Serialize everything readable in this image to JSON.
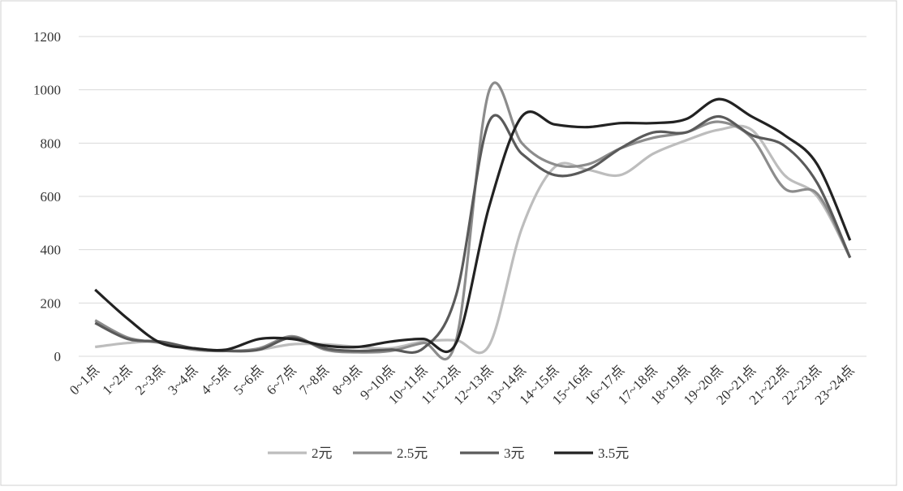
{
  "chart_data": {
    "type": "line",
    "categories": [
      "0~1点",
      "1~2点",
      "2~3点",
      "3~4点",
      "4~5点",
      "5~6点",
      "6~7点",
      "7~8点",
      "8~9点",
      "9~10点",
      "10~11点",
      "11~12点",
      "12~13点",
      "13~14点",
      "14~15点",
      "15~16点",
      "16~17点",
      "17~18点",
      "18~19点",
      "19~20点",
      "20~21点",
      "21~22点",
      "22~23点",
      "23~24点"
    ],
    "series": [
      {
        "name": "2元",
        "color": "#bdbdbd",
        "values": [
          35,
          50,
          55,
          30,
          20,
          25,
          45,
          45,
          35,
          30,
          55,
          60,
          40,
          480,
          710,
          700,
          680,
          760,
          810,
          850,
          850,
          680,
          600,
          370
        ]
      },
      {
        "name": "2.5元",
        "color": "#8c8c8c",
        "values": [
          135,
          70,
          50,
          25,
          20,
          30,
          75,
          25,
          15,
          20,
          50,
          60,
          995,
          800,
          720,
          720,
          780,
          820,
          840,
          880,
          820,
          630,
          610,
          370
        ]
      },
      {
        "name": "3元",
        "color": "#5a5a5a",
        "values": [
          125,
          65,
          55,
          30,
          20,
          25,
          70,
          30,
          20,
          25,
          30,
          230,
          880,
          760,
          680,
          700,
          780,
          840,
          840,
          900,
          830,
          790,
          650,
          370
        ]
      },
      {
        "name": "3.5元",
        "color": "#222222",
        "values": [
          250,
          140,
          50,
          30,
          25,
          65,
          65,
          40,
          35,
          55,
          65,
          50,
          560,
          900,
          870,
          860,
          875,
          875,
          890,
          965,
          900,
          830,
          720,
          435
        ]
      }
    ],
    "ylim": [
      0,
      1200
    ],
    "yticks": [
      0,
      200,
      400,
      600,
      800,
      1000,
      1200
    ],
    "grid": true
  }
}
